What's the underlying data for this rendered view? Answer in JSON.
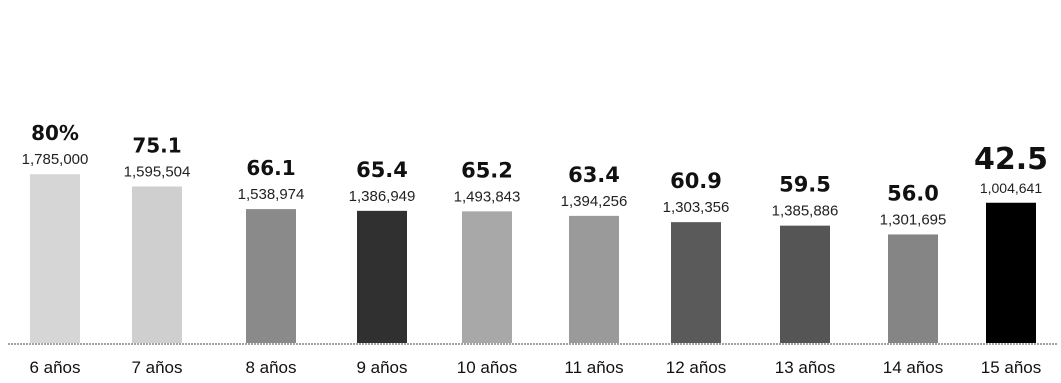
{
  "chart_data": {
    "type": "bar",
    "categories": [
      "6 años",
      "7 años",
      "8 años",
      "9 años",
      "10 años",
      "11 años",
      "12 años",
      "13 años",
      "14 años",
      "15 años"
    ],
    "values": [
      80,
      75.1,
      66.1,
      65.4,
      65.2,
      63.4,
      60.9,
      59.5,
      56.0,
      42.5
    ],
    "value_labels": [
      "80%",
      "75.1",
      "66.1",
      "65.4",
      "65.2",
      "63.4",
      "60.9",
      "59.5",
      "56.0",
      "42.5"
    ],
    "counts": [
      "1,785,000",
      "1,595,504",
      "1,538,974",
      "1,386,949",
      "1,493,843",
      "1,394,256",
      "1,303,356",
      "1,385,886",
      "1,301,695",
      "1,004,641"
    ],
    "bar_shades": [
      "#d6d6d6",
      "#cfcfcf",
      "#8a8a8a",
      "#303030",
      "#a8a8a8",
      "#9a9a9a",
      "#5a5a5a",
      "#555555",
      "#858585",
      "#000000"
    ],
    "title": "",
    "xlabel": "",
    "ylabel": "",
    "ylim": [
      0,
      80
    ],
    "grid": false,
    "legend": "none"
  }
}
